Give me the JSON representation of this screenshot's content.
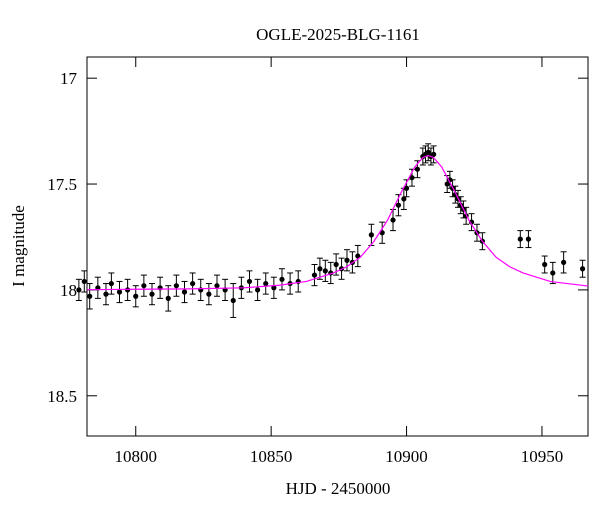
{
  "chart_data": {
    "type": "scatter",
    "title": "OGLE-2025-BLG-1161",
    "x_label": "HJD - 2450000",
    "y_label": "I magnitude",
    "xlim": [
      10782,
      10967
    ],
    "ylim": [
      16.9,
      18.69
    ],
    "y_inverted": true,
    "xticks": [
      10800,
      10850,
      10900,
      10950
    ],
    "yticks": [
      17,
      17.5,
      18,
      18.5
    ],
    "color": "#000000",
    "x": [
      10779,
      10781,
      10783,
      10786,
      10789,
      10791,
      10794,
      10797,
      10800,
      10803,
      10806,
      10809,
      10812,
      10815,
      10818,
      10821,
      10824,
      10827,
      10830,
      10833,
      10836,
      10839,
      10842,
      10845,
      10848,
      10851,
      10854,
      10857,
      10860,
      10866,
      10868,
      10870,
      10872,
      10874,
      10876,
      10878,
      10880,
      10882,
      10887,
      10891,
      10895,
      10897,
      10899,
      10900,
      10902,
      10904,
      10906,
      10907,
      10908,
      10909,
      10910,
      10915,
      10916,
      10917,
      10918,
      10919,
      10920,
      10921,
      10922,
      10924,
      10926,
      10928,
      10942,
      10945,
      10951,
      10954,
      10958,
      10965
    ],
    "values": [
      18.0,
      17.96,
      18.03,
      17.99,
      18.02,
      17.97,
      18.01,
      18.0,
      18.03,
      17.98,
      18.02,
      17.99,
      18.04,
      17.98,
      18.01,
      17.97,
      18.0,
      18.02,
      17.98,
      18.0,
      18.05,
      17.99,
      17.96,
      18.0,
      17.97,
      17.99,
      17.95,
      17.97,
      17.96,
      17.93,
      17.9,
      17.91,
      17.92,
      17.88,
      17.9,
      17.86,
      17.87,
      17.84,
      17.74,
      17.73,
      17.67,
      17.6,
      17.57,
      17.52,
      17.47,
      17.43,
      17.37,
      17.36,
      17.35,
      17.37,
      17.36,
      17.5,
      17.48,
      17.52,
      17.55,
      17.57,
      17.6,
      17.62,
      17.65,
      17.68,
      17.73,
      17.77,
      17.76,
      17.76,
      17.88,
      17.92,
      17.87,
      17.9
    ],
    "errors": [
      0.05,
      0.05,
      0.06,
      0.05,
      0.05,
      0.05,
      0.05,
      0.05,
      0.05,
      0.05,
      0.05,
      0.05,
      0.06,
      0.05,
      0.05,
      0.05,
      0.05,
      0.05,
      0.05,
      0.05,
      0.08,
      0.05,
      0.05,
      0.05,
      0.05,
      0.05,
      0.05,
      0.05,
      0.05,
      0.05,
      0.05,
      0.05,
      0.05,
      0.05,
      0.05,
      0.05,
      0.05,
      0.05,
      0.05,
      0.05,
      0.05,
      0.05,
      0.05,
      0.04,
      0.04,
      0.04,
      0.04,
      0.04,
      0.04,
      0.04,
      0.04,
      0.04,
      0.04,
      0.04,
      0.04,
      0.04,
      0.04,
      0.04,
      0.04,
      0.04,
      0.04,
      0.04,
      0.04,
      0.04,
      0.04,
      0.05,
      0.05,
      0.04
    ],
    "model": {
      "type": "line",
      "color": "#ff00ff",
      "x": [
        10782,
        10800,
        10820,
        10840,
        10853,
        10863,
        10873,
        10878,
        10883,
        10888,
        10893,
        10898,
        10903,
        10906,
        10908,
        10910,
        10913,
        10918,
        10923,
        10928,
        10933,
        10938,
        10943,
        10953,
        10967
      ],
      "values": [
        17.999,
        17.997,
        17.995,
        17.99,
        17.978,
        17.96,
        17.92,
        17.89,
        17.845,
        17.77,
        17.67,
        17.54,
        17.42,
        17.375,
        17.365,
        17.375,
        17.42,
        17.54,
        17.67,
        17.77,
        17.845,
        17.89,
        17.92,
        17.96,
        17.982
      ]
    }
  }
}
